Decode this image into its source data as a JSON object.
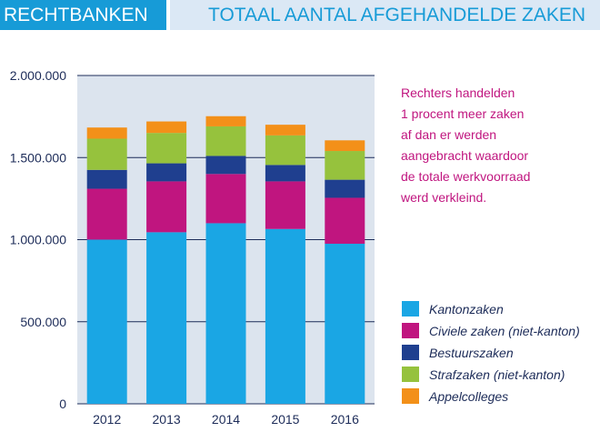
{
  "header": {
    "left_title": "RECHTBANKEN",
    "right_title": "TOTAAL AANTAL AFGEHANDELDE ZAKEN"
  },
  "colors": {
    "header_left_bg": "#179bd7",
    "header_right_bg": "#dbe8f5",
    "plot_bg": "#dce4ee",
    "note_text": "#c0157f",
    "axis_text": "#1d2c59"
  },
  "note": {
    "lines": [
      "Rechters handelden",
      "1 procent meer zaken",
      "af dan er werden",
      "aangebracht waardoor",
      "de totale werkvoorraad",
      "werd verkleind."
    ]
  },
  "chart_data": {
    "type": "bar",
    "stacked": true,
    "categories": [
      "2012",
      "2013",
      "2014",
      "2015",
      "2016"
    ],
    "ylim": [
      0,
      2000000
    ],
    "yticks": [
      0,
      500000,
      1000000,
      1500000,
      2000000
    ],
    "ytick_labels": [
      "0",
      "500.000",
      "1.000.000",
      "1.500.000",
      "2.000.000"
    ],
    "grid": true,
    "legend_position": "right",
    "series": [
      {
        "name": "Kantonzaken",
        "color": "#1aa6e4",
        "values": [
          1000000,
          1045000,
          1100000,
          1065000,
          975000
        ]
      },
      {
        "name": "Civiele zaken (niet-kanton)",
        "color": "#c0157f",
        "values": [
          310000,
          310000,
          300000,
          290000,
          280000
        ]
      },
      {
        "name": "Bestuurszaken",
        "color": "#1f3f8f",
        "values": [
          115000,
          110000,
          110000,
          100000,
          110000
        ]
      },
      {
        "name": "Strafzaken (niet-kanton)",
        "color": "#96c23d",
        "values": [
          190000,
          185000,
          180000,
          180000,
          175000
        ]
      },
      {
        "name": "Appelcolleges",
        "color": "#f39019",
        "values": [
          68000,
          70000,
          62000,
          65000,
          65000
        ]
      }
    ]
  }
}
